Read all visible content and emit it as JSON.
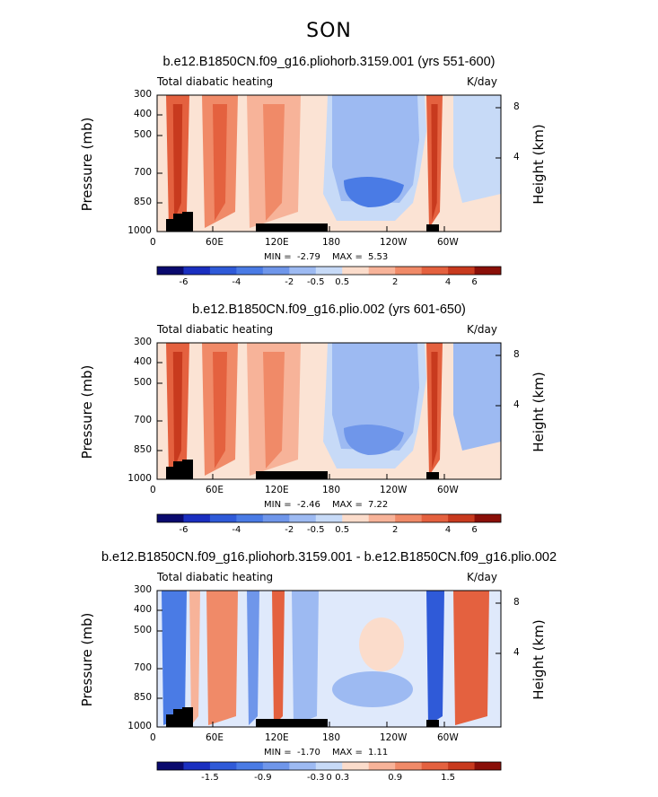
{
  "figure": {
    "season": "SON"
  },
  "chart_data": [
    {
      "type": "heatmap",
      "title": "b.e12.B1850CN.f09_g16.pliohorb.3159.001 (yrs 551-600)",
      "left_subtitle": "Total diabatic heating",
      "units": "K/day",
      "ylabel": "Pressure (mb)",
      "ylabel_right": "Height (km)",
      "x_ticks": [
        "0",
        "60E",
        "120E",
        "180",
        "120W",
        "60W"
      ],
      "y_ticks": [
        "300",
        "400",
        "500",
        "700",
        "850",
        "1000"
      ],
      "y_right_ticks": [
        "8",
        "4"
      ],
      "min_label": "MIN =",
      "min": "-2.79",
      "max_label": "MAX =",
      "max": "5.53",
      "colorbar": [
        "-6",
        "-4",
        "-2",
        "-0.5",
        "0.5",
        "2",
        "4",
        "6"
      ]
    },
    {
      "type": "heatmap",
      "title": "b.e12.B1850CN.f09_g16.plio.002 (yrs 601-650)",
      "left_subtitle": "Total diabatic heating",
      "units": "K/day",
      "ylabel": "Pressure (mb)",
      "ylabel_right": "Height (km)",
      "x_ticks": [
        "0",
        "60E",
        "120E",
        "180",
        "120W",
        "60W"
      ],
      "y_ticks": [
        "300",
        "400",
        "500",
        "700",
        "850",
        "1000"
      ],
      "y_right_ticks": [
        "8",
        "4"
      ],
      "min_label": "MIN =",
      "min": "-2.46",
      "max_label": "MAX =",
      "max": "7.22",
      "colorbar": [
        "-6",
        "-4",
        "-2",
        "-0.5",
        "0.5",
        "2",
        "4",
        "6"
      ]
    },
    {
      "type": "heatmap",
      "title": "b.e12.B1850CN.f09_g16.pliohorb.3159.001 - b.e12.B1850CN.f09_g16.plio.002",
      "left_subtitle": "Total diabatic heating",
      "units": "K/day",
      "ylabel": "Pressure (mb)",
      "ylabel_right": "Height (km)",
      "x_ticks": [
        "0",
        "60E",
        "120E",
        "180",
        "120W",
        "60W"
      ],
      "y_ticks": [
        "300",
        "400",
        "500",
        "700",
        "850",
        "1000"
      ],
      "y_right_ticks": [
        "8",
        "4"
      ],
      "min_label": "MIN =",
      "min": "-1.70",
      "max_label": "MAX =",
      "max": "1.11",
      "colorbar": [
        "-1.5",
        "-0.9",
        "-0.3",
        "0",
        "0.3",
        "0.9",
        "1.5"
      ]
    }
  ]
}
